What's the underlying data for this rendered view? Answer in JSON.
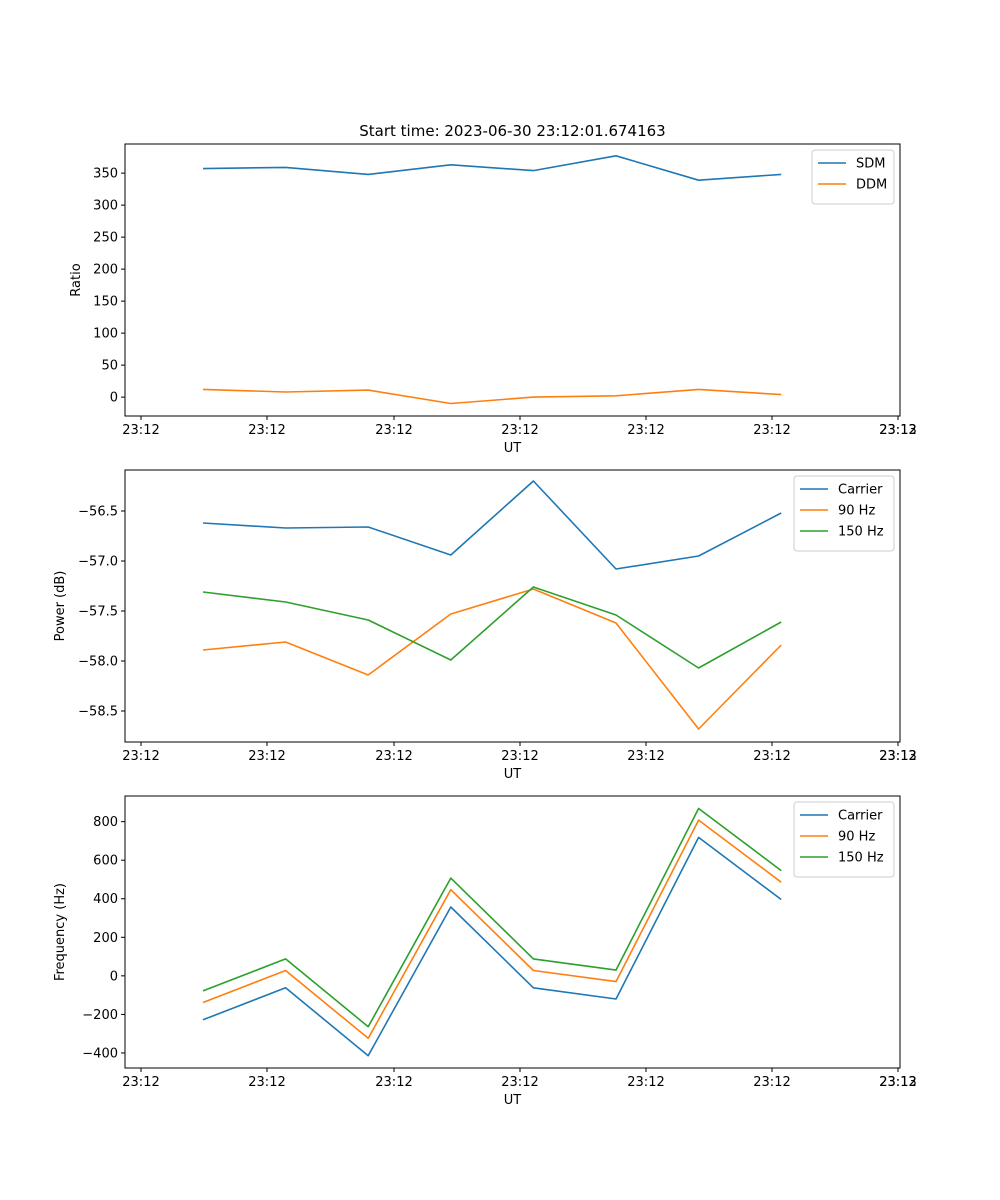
{
  "figure": {
    "title": "Start time: 2023-06-30 23:12:01.674163"
  },
  "chart_data": [
    {
      "type": "line",
      "title": "Start time: 2023-06-30 23:12:01.674163",
      "xlabel": "UT",
      "ylabel": "Ratio",
      "x_tick_labels": [
        "23:12",
        "23:12",
        "23:12",
        "23:12",
        "23:12",
        "23:12",
        "23:12",
        "23:13"
      ],
      "y_ticks": [
        0,
        50,
        100,
        150,
        200,
        250,
        300,
        350
      ],
      "ylim": [
        -29.5,
        395.5
      ],
      "legend_position": "top-right",
      "grid": false,
      "series": [
        {
          "name": "SDM",
          "color": "#1f77b4",
          "values": [
            357,
            359,
            348,
            363,
            354,
            377,
            339,
            348
          ]
        },
        {
          "name": "DDM",
          "color": "#ff7f0e",
          "values": [
            12,
            8,
            11,
            -10,
            0,
            2,
            12,
            4
          ]
        }
      ]
    },
    {
      "type": "line",
      "title": "",
      "xlabel": "UT",
      "ylabel": "Power (dB)",
      "x_tick_labels": [
        "23:12",
        "23:12",
        "23:12",
        "23:12",
        "23:12",
        "23:12",
        "23:12",
        "23:13"
      ],
      "y_ticks": [
        -58.5,
        -58.0,
        -57.5,
        -57.0,
        -56.5
      ],
      "y_tick_labels": [
        "−58.5",
        "−58.0",
        "−57.5",
        "−57.0",
        "−56.5"
      ],
      "ylim": [
        -58.81,
        -56.09
      ],
      "legend_position": "top-right",
      "grid": false,
      "series": [
        {
          "name": "Carrier",
          "color": "#1f77b4",
          "values": [
            -56.62,
            -56.67,
            -56.66,
            -56.94,
            -56.2,
            -57.08,
            -56.95,
            -56.52
          ]
        },
        {
          "name": "90 Hz",
          "color": "#ff7f0e",
          "values": [
            -57.89,
            -57.81,
            -58.14,
            -57.53,
            -57.28,
            -57.62,
            -58.68,
            -57.84
          ]
        },
        {
          "name": "150 Hz",
          "color": "#2ca02c",
          "values": [
            -57.31,
            -57.41,
            -57.59,
            -57.99,
            -57.26,
            -57.54,
            -58.07,
            -57.61
          ]
        }
      ]
    },
    {
      "type": "line",
      "title": "",
      "xlabel": "UT",
      "ylabel": "Frequency (Hz)",
      "x_tick_labels": [
        "23:12",
        "23:12",
        "23:12",
        "23:12",
        "23:12",
        "23:12",
        "23:12",
        "23:13"
      ],
      "y_ticks": [
        -400,
        -200,
        0,
        200,
        400,
        600,
        800
      ],
      "y_tick_labels": [
        "−400",
        "−200",
        "0",
        "200",
        "400",
        "600",
        "800"
      ],
      "ylim": [
        -478,
        933
      ],
      "legend_position": "top-right",
      "grid": false,
      "series": [
        {
          "name": "Carrier",
          "color": "#1f77b4",
          "values": [
            -228,
            -62,
            -414,
            357,
            -62,
            -120,
            718,
            396
          ]
        },
        {
          "name": "90 Hz",
          "color": "#ff7f0e",
          "values": [
            -138,
            28,
            -324,
            447,
            28,
            -30,
            808,
            486
          ]
        },
        {
          "name": "150 Hz",
          "color": "#2ca02c",
          "values": [
            -78,
            88,
            -264,
            507,
            88,
            30,
            868,
            546
          ]
        }
      ]
    }
  ]
}
